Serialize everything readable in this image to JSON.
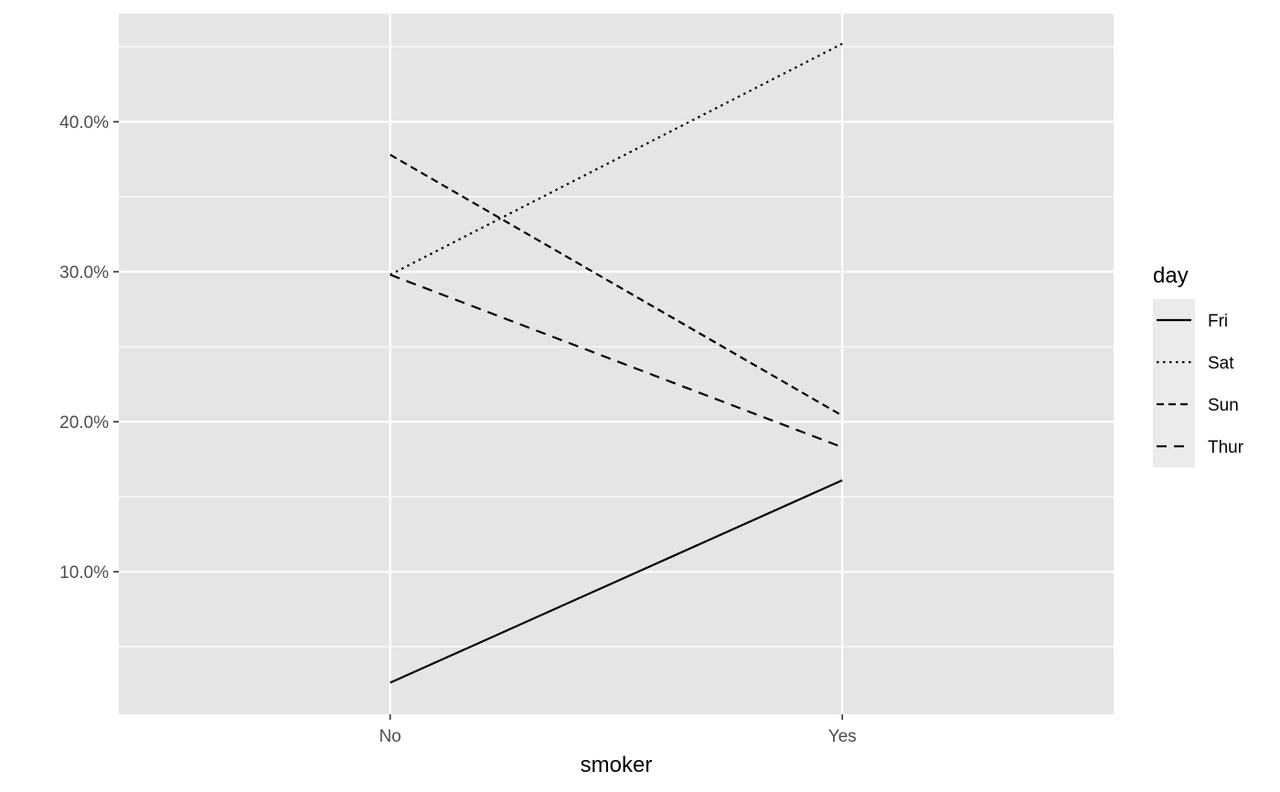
{
  "chart_data": {
    "type": "line",
    "title": "",
    "xlabel": "smoker",
    "ylabel": "",
    "categories": [
      "No",
      "Yes"
    ],
    "ylim": [
      0.5,
      47.2
    ],
    "y_ticks": [
      10,
      20,
      30,
      40
    ],
    "y_tick_labels": [
      "10.0%",
      "20.0%",
      "30.0%",
      "40.0%"
    ],
    "y_unit": "%",
    "grid": true,
    "legend": {
      "title": "day",
      "position": "right"
    },
    "series": [
      {
        "name": "Fri",
        "values": [
          2.6,
          16.1
        ],
        "linetype": "solid"
      },
      {
        "name": "Sat",
        "values": [
          29.8,
          45.2
        ],
        "linetype": "dotted"
      },
      {
        "name": "Sun",
        "values": [
          37.8,
          20.4
        ],
        "linetype": "dashed"
      },
      {
        "name": "Thur",
        "values": [
          29.8,
          18.3
        ],
        "linetype": "longdash"
      }
    ],
    "colors": {
      "panel": "#e5e5e5",
      "grid": "#ffffff",
      "line": "#000000",
      "legend_key": "#ebebeb"
    }
  }
}
